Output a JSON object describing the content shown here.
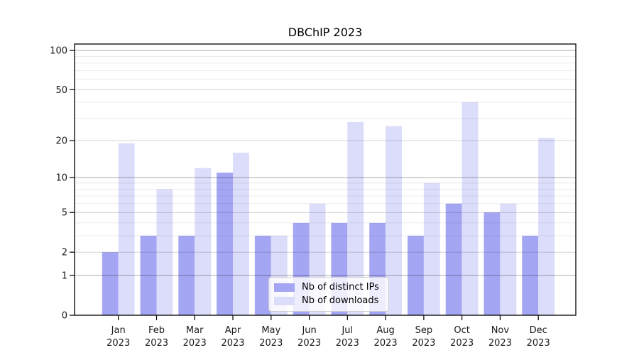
{
  "chart_data": {
    "type": "bar",
    "title": "DBChIP 2023",
    "categories": [
      "Jan",
      "Feb",
      "Mar",
      "Apr",
      "May",
      "Jun",
      "Jul",
      "Aug",
      "Sep",
      "Oct",
      "Nov",
      "Dec"
    ],
    "year_label": "2023",
    "series": [
      {
        "name": "Nb of distinct IPs",
        "color": "#a4a6f3",
        "values": [
          2,
          3,
          3,
          11,
          3,
          4,
          4,
          4,
          3,
          6,
          5,
          3
        ]
      },
      {
        "name": "Nb of downloads",
        "color": "#dcddfa",
        "values": [
          19,
          8,
          12,
          16,
          3,
          6,
          28,
          26,
          9,
          40,
          6,
          21
        ]
      }
    ],
    "y_scale": "log1p",
    "y_ticks": [
      0,
      1,
      2,
      5,
      10,
      20,
      50,
      100
    ],
    "y_minor_gridlines": [
      3,
      4,
      6,
      7,
      8,
      9,
      30,
      40,
      60,
      70,
      80,
      90
    ],
    "ylim": [
      0,
      112
    ],
    "grid": "horizontal",
    "legend_position": "inside lower-center",
    "colors": {
      "axis": "#000000",
      "tick_label": "#1a1a1a",
      "major_grid_decade": "rgba(0,0,0,0.33)",
      "major_grid": "rgba(0,0,0,0.17)",
      "minor_grid": "rgba(0,0,0,0.08)",
      "background": "#ffffff"
    }
  }
}
